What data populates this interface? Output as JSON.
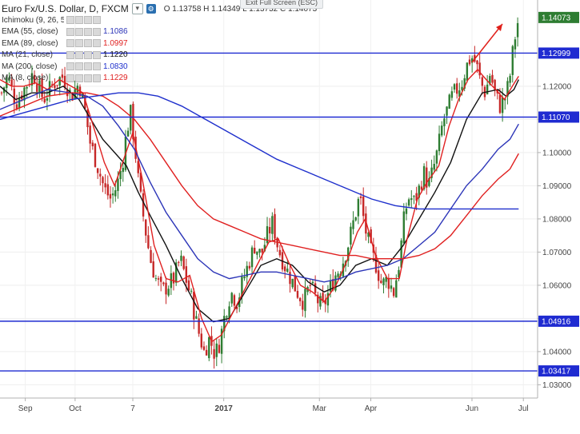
{
  "header": {
    "title": "Euro Fx/U.S. Dollar, D, FXCM",
    "ohlc": "O 1.13758 H 1.14349 L 1.13732 C 1.14073",
    "exit_full_screen": "Exit Full Screen (ESC)"
  },
  "indicators": [
    {
      "name": "Ichimoku (9, 26, 52, 26)",
      "value": "",
      "color": "#9e9e9e"
    },
    {
      "name": "EMA (55, close)",
      "value": "1.1086",
      "color": "#2c35b8"
    },
    {
      "name": "EMA (89, close)",
      "value": "1.0997",
      "color": "#e02020"
    },
    {
      "name": "MA (21, close)",
      "value": "1.1220",
      "color": "#111111"
    },
    {
      "name": "MA (200, close)",
      "value": "1.0830",
      "color": "#1e2fcc"
    },
    {
      "name": "MA (8, close)",
      "value": "1.1229",
      "color": "#e02020"
    }
  ],
  "chart_data": {
    "type": "candlestick",
    "title": "Euro Fx/U.S. Dollar, D, FXCM",
    "ylim": [
      1.026,
      1.146
    ],
    "y_ticks": [
      "1.12000",
      "1.11000",
      "1.10000",
      "1.09000",
      "1.08000",
      "1.07000",
      "1.06000",
      "1.05000",
      "1.04000",
      "1.03000"
    ],
    "y_tick_values": [
      1.12,
      1.11,
      1.1,
      1.09,
      1.08,
      1.07,
      1.06,
      1.05,
      1.04,
      1.03
    ],
    "x_ticks": [
      "Sep",
      "Oct",
      "7",
      "2017",
      "Mar",
      "Apr",
      "Jun",
      "Jul"
    ],
    "x_tick_positions": [
      32,
      95,
      168,
      283,
      404,
      469,
      597,
      662
    ],
    "x_range": [
      0,
      680
    ],
    "horizontal_levels": [
      {
        "value": 1.12999,
        "label": "1.12999"
      },
      {
        "value": 1.1107,
        "label": "1.11070"
      },
      {
        "value": 1.04916,
        "label": "1.04916"
      },
      {
        "value": 1.03417,
        "label": "1.03417"
      }
    ],
    "last_price": {
      "value": 1.14073,
      "label": "1.14073",
      "color": "#2e7d32"
    },
    "close_anchors": [
      [
        2,
        1.118
      ],
      [
        10,
        1.123
      ],
      [
        20,
        1.115
      ],
      [
        30,
        1.119
      ],
      [
        42,
        1.124
      ],
      [
        55,
        1.116
      ],
      [
        68,
        1.121
      ],
      [
        80,
        1.123
      ],
      [
        90,
        1.117
      ],
      [
        100,
        1.121
      ],
      [
        108,
        1.112
      ],
      [
        114,
        1.103
      ],
      [
        122,
        1.097
      ],
      [
        132,
        1.089
      ],
      [
        140,
        1.086
      ],
      [
        148,
        1.09
      ],
      [
        155,
        1.097
      ],
      [
        160,
        1.106
      ],
      [
        165,
        1.112
      ],
      [
        170,
        1.103
      ],
      [
        176,
        1.089
      ],
      [
        183,
        1.078
      ],
      [
        190,
        1.068
      ],
      [
        197,
        1.062
      ],
      [
        205,
        1.058
      ],
      [
        212,
        1.06
      ],
      [
        220,
        1.062
      ],
      [
        228,
        1.068
      ],
      [
        235,
        1.062
      ],
      [
        242,
        1.056
      ],
      [
        250,
        1.047
      ],
      [
        258,
        1.04
      ],
      [
        265,
        1.044
      ],
      [
        272,
        1.039
      ],
      [
        278,
        1.043
      ],
      [
        285,
        1.052
      ],
      [
        292,
        1.058
      ],
      [
        300,
        1.055
      ],
      [
        308,
        1.062
      ],
      [
        315,
        1.067
      ],
      [
        322,
        1.072
      ],
      [
        330,
        1.069
      ],
      [
        338,
        1.075
      ],
      [
        345,
        1.079
      ],
      [
        352,
        1.071
      ],
      [
        360,
        1.066
      ],
      [
        368,
        1.062
      ],
      [
        376,
        1.058
      ],
      [
        384,
        1.055
      ],
      [
        392,
        1.06
      ],
      [
        400,
        1.056
      ],
      [
        408,
        1.053
      ],
      [
        416,
        1.058
      ],
      [
        424,
        1.063
      ],
      [
        432,
        1.066
      ],
      [
        440,
        1.072
      ],
      [
        448,
        1.08
      ],
      [
        455,
        1.087
      ],
      [
        462,
        1.077
      ],
      [
        469,
        1.07
      ],
      [
        476,
        1.066
      ],
      [
        483,
        1.06
      ],
      [
        490,
        1.062
      ],
      [
        498,
        1.058
      ],
      [
        505,
        1.067
      ],
      [
        512,
        1.082
      ],
      [
        518,
        1.087
      ],
      [
        524,
        1.085
      ],
      [
        530,
        1.089
      ],
      [
        536,
        1.094
      ],
      [
        542,
        1.09
      ],
      [
        548,
        1.095
      ],
      [
        554,
        1.101
      ],
      [
        560,
        1.109
      ],
      [
        566,
        1.113
      ],
      [
        572,
        1.117
      ],
      [
        578,
        1.119
      ],
      [
        584,
        1.121
      ],
      [
        590,
        1.126
      ],
      [
        596,
        1.129
      ],
      [
        602,
        1.127
      ],
      [
        608,
        1.121
      ],
      [
        614,
        1.118
      ],
      [
        620,
        1.124
      ],
      [
        626,
        1.118
      ],
      [
        632,
        1.114
      ],
      [
        638,
        1.116
      ],
      [
        644,
        1.121
      ],
      [
        650,
        1.133
      ],
      [
        656,
        1.1407
      ]
    ],
    "series": [
      {
        "name": "MA (21, close)",
        "color": "#111111",
        "points": [
          [
            0,
            1.12
          ],
          [
            20,
            1.116
          ],
          [
            40,
            1.118
          ],
          [
            60,
            1.118
          ],
          [
            80,
            1.12
          ],
          [
            100,
            1.116
          ],
          [
            115,
            1.11
          ],
          [
            130,
            1.104
          ],
          [
            145,
            1.1
          ],
          [
            160,
            1.096
          ],
          [
            175,
            1.088
          ],
          [
            190,
            1.081
          ],
          [
            210,
            1.072
          ],
          [
            230,
            1.062
          ],
          [
            250,
            1.053
          ],
          [
            270,
            1.049
          ],
          [
            290,
            1.05
          ],
          [
            310,
            1.058
          ],
          [
            330,
            1.066
          ],
          [
            350,
            1.068
          ],
          [
            370,
            1.066
          ],
          [
            390,
            1.061
          ],
          [
            410,
            1.058
          ],
          [
            430,
            1.06
          ],
          [
            450,
            1.066
          ],
          [
            470,
            1.068
          ],
          [
            490,
            1.066
          ],
          [
            510,
            1.072
          ],
          [
            530,
            1.08
          ],
          [
            550,
            1.088
          ],
          [
            570,
            1.097
          ],
          [
            590,
            1.11
          ],
          [
            610,
            1.118
          ],
          [
            630,
            1.119
          ],
          [
            640,
            1.117
          ],
          [
            650,
            1.119
          ],
          [
            656,
            1.122
          ]
        ]
      },
      {
        "name": "MA (8, close)",
        "color": "#e02020",
        "points": [
          [
            0,
            1.122
          ],
          [
            15,
            1.12
          ],
          [
            30,
            1.12
          ],
          [
            45,
            1.121
          ],
          [
            60,
            1.119
          ],
          [
            75,
            1.122
          ],
          [
            90,
            1.12
          ],
          [
            105,
            1.118
          ],
          [
            118,
            1.108
          ],
          [
            132,
            1.097
          ],
          [
            145,
            1.09
          ],
          [
            158,
            1.099
          ],
          [
            168,
            1.106
          ],
          [
            180,
            1.092
          ],
          [
            195,
            1.072
          ],
          [
            210,
            1.062
          ],
          [
            225,
            1.061
          ],
          [
            240,
            1.063
          ],
          [
            255,
            1.05
          ],
          [
            268,
            1.043
          ],
          [
            280,
            1.045
          ],
          [
            295,
            1.052
          ],
          [
            310,
            1.059
          ],
          [
            325,
            1.066
          ],
          [
            340,
            1.073
          ],
          [
            352,
            1.074
          ],
          [
            365,
            1.067
          ],
          [
            380,
            1.06
          ],
          [
            395,
            1.058
          ],
          [
            410,
            1.055
          ],
          [
            425,
            1.06
          ],
          [
            440,
            1.068
          ],
          [
            452,
            1.076
          ],
          [
            462,
            1.08
          ],
          [
            475,
            1.069
          ],
          [
            490,
            1.062
          ],
          [
            505,
            1.062
          ],
          [
            515,
            1.074
          ],
          [
            528,
            1.086
          ],
          [
            540,
            1.091
          ],
          [
            555,
            1.096
          ],
          [
            568,
            1.108
          ],
          [
            580,
            1.116
          ],
          [
            592,
            1.122
          ],
          [
            604,
            1.125
          ],
          [
            615,
            1.122
          ],
          [
            627,
            1.119
          ],
          [
            638,
            1.116
          ],
          [
            648,
            1.12
          ],
          [
            656,
            1.123
          ]
        ]
      },
      {
        "name": "EMA (55, close)",
        "color": "#2c35b8",
        "points": [
          [
            0,
            1.113
          ],
          [
            30,
            1.116
          ],
          [
            60,
            1.119
          ],
          [
            90,
            1.118
          ],
          [
            110,
            1.117
          ],
          [
            130,
            1.114
          ],
          [
            150,
            1.108
          ],
          [
            170,
            1.101
          ],
          [
            190,
            1.091
          ],
          [
            210,
            1.082
          ],
          [
            230,
            1.075
          ],
          [
            250,
            1.068
          ],
          [
            270,
            1.064
          ],
          [
            290,
            1.062
          ],
          [
            310,
            1.063
          ],
          [
            330,
            1.064
          ],
          [
            350,
            1.064
          ],
          [
            370,
            1.063
          ],
          [
            390,
            1.062
          ],
          [
            410,
            1.061
          ],
          [
            430,
            1.062
          ],
          [
            450,
            1.064
          ],
          [
            470,
            1.065
          ],
          [
            490,
            1.066
          ],
          [
            510,
            1.068
          ],
          [
            530,
            1.072
          ],
          [
            550,
            1.076
          ],
          [
            570,
            1.083
          ],
          [
            590,
            1.09
          ],
          [
            610,
            1.095
          ],
          [
            630,
            1.101
          ],
          [
            645,
            1.104
          ],
          [
            656,
            1.1086
          ]
        ]
      },
      {
        "name": "EMA (89, close)",
        "color": "#e02020",
        "points": [
          [
            0,
            1.111
          ],
          [
            30,
            1.114
          ],
          [
            60,
            1.117
          ],
          [
            90,
            1.118
          ],
          [
            110,
            1.118
          ],
          [
            130,
            1.117
          ],
          [
            150,
            1.114
          ],
          [
            170,
            1.11
          ],
          [
            190,
            1.104
          ],
          [
            210,
            1.097
          ],
          [
            230,
            1.09
          ],
          [
            250,
            1.084
          ],
          [
            270,
            1.08
          ],
          [
            290,
            1.078
          ],
          [
            310,
            1.076
          ],
          [
            330,
            1.074
          ],
          [
            350,
            1.073
          ],
          [
            370,
            1.072
          ],
          [
            390,
            1.071
          ],
          [
            410,
            1.07
          ],
          [
            430,
            1.069
          ],
          [
            450,
            1.069
          ],
          [
            470,
            1.068
          ],
          [
            490,
            1.068
          ],
          [
            510,
            1.068
          ],
          [
            530,
            1.069
          ],
          [
            550,
            1.071
          ],
          [
            570,
            1.075
          ],
          [
            590,
            1.081
          ],
          [
            610,
            1.087
          ],
          [
            630,
            1.092
          ],
          [
            645,
            1.095
          ],
          [
            656,
            1.0997
          ]
        ]
      },
      {
        "name": "MA (200, close)",
        "color": "#1e2fcc",
        "points": [
          [
            0,
            1.11
          ],
          [
            30,
            1.112
          ],
          [
            60,
            1.114
          ],
          [
            90,
            1.116
          ],
          [
            120,
            1.117
          ],
          [
            150,
            1.118
          ],
          [
            175,
            1.118
          ],
          [
            200,
            1.117
          ],
          [
            230,
            1.114
          ],
          [
            260,
            1.11
          ],
          [
            290,
            1.106
          ],
          [
            320,
            1.102
          ],
          [
            350,
            1.098
          ],
          [
            380,
            1.095
          ],
          [
            410,
            1.092
          ],
          [
            440,
            1.089
          ],
          [
            470,
            1.086
          ],
          [
            500,
            1.084
          ],
          [
            530,
            1.083
          ],
          [
            560,
            1.083
          ],
          [
            590,
            1.083
          ],
          [
            620,
            1.083
          ],
          [
            640,
            1.083
          ],
          [
            656,
            1.083
          ]
        ]
      }
    ]
  }
}
